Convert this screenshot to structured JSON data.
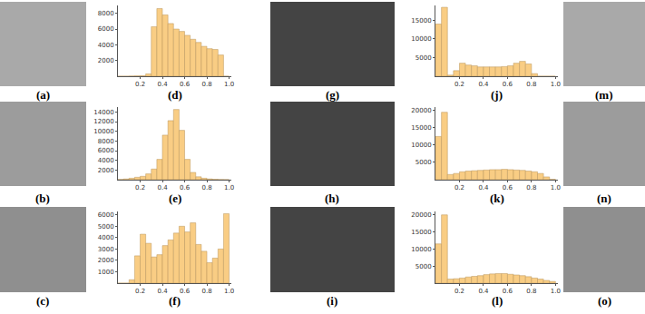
{
  "images": [
    {
      "label": "(a)",
      "color": "#a9a9a9"
    },
    {
      "label": "(b)",
      "color": "#9c9c9c"
    },
    {
      "label": "(c)",
      "color": "#8f8f8f"
    },
    {
      "label": "(g)",
      "color": "#444444"
    },
    {
      "label": "(h)",
      "color": "#444444"
    },
    {
      "label": "(i)",
      "color": "#444444"
    },
    {
      "label": "(m)",
      "color": "#a9a9a9"
    },
    {
      "label": "(n)",
      "color": "#9c9c9c"
    },
    {
      "label": "(o)",
      "color": "#8f8f8f"
    }
  ],
  "chart_data": [
    {
      "type": "histogram",
      "xlabel": "(d)",
      "color": "#f9cd84",
      "bins": [
        0,
        0.05,
        0.1,
        0.15,
        0.2,
        0.25,
        0.3,
        0.35,
        0.4,
        0.45,
        0.5,
        0.55,
        0.6,
        0.65,
        0.7,
        0.75,
        0.8,
        0.85,
        0.9,
        0.95,
        1
      ],
      "counts": [
        0,
        0,
        20,
        40,
        60,
        300,
        6300,
        8600,
        7800,
        6700,
        6000,
        5700,
        5200,
        4700,
        4300,
        3800,
        3500,
        3400,
        2700,
        0
      ],
      "xlim": [
        0,
        1.02
      ],
      "ylim": [
        0,
        9000
      ],
      "xticks": [
        0.2,
        0.4,
        0.6,
        0.8,
        {
          "value": 1,
          "label": "1.0"
        }
      ],
      "yticks": [
        2000,
        4000,
        6000,
        8000
      ]
    },
    {
      "type": "histogram",
      "xlabel": "(e)",
      "color": "#f9cd84",
      "bins": [
        0,
        0.05,
        0.1,
        0.15,
        0.2,
        0.25,
        0.3,
        0.35,
        0.4,
        0.45,
        0.5,
        0.55,
        0.6,
        0.65,
        0.7,
        0.75,
        0.8,
        0.85,
        0.9,
        0.95,
        1
      ],
      "counts": [
        50,
        150,
        300,
        500,
        700,
        1200,
        2200,
        4200,
        9200,
        12200,
        14500,
        10200,
        4200,
        1500,
        600,
        300,
        150,
        80,
        30,
        10
      ],
      "xlim": [
        0,
        1.02
      ],
      "ylim": [
        0,
        15000
      ],
      "xticks": [
        0.2,
        0.4,
        0.6,
        0.8,
        {
          "value": 1,
          "label": "1.0"
        }
      ],
      "yticks": [
        2000,
        4000,
        6000,
        8000,
        10000,
        12000,
        14000
      ]
    },
    {
      "type": "histogram",
      "xlabel": "(f)",
      "color": "#f9cd84",
      "bins": [
        0,
        0.05,
        0.1,
        0.15,
        0.2,
        0.25,
        0.3,
        0.35,
        0.4,
        0.45,
        0.5,
        0.55,
        0.6,
        0.65,
        0.7,
        0.75,
        0.8,
        0.85,
        0.9,
        0.95,
        1
      ],
      "counts": [
        0,
        0,
        300,
        2400,
        4300,
        3500,
        2300,
        2500,
        3300,
        3800,
        4400,
        5000,
        4500,
        5300,
        3400,
        2800,
        1800,
        2200,
        3000,
        6100
      ],
      "xlim": [
        0,
        1.02
      ],
      "ylim": [
        0,
        6300
      ],
      "xticks": [
        0.2,
        0.4,
        0.6,
        0.8,
        {
          "value": 1,
          "label": "1.0"
        }
      ],
      "yticks": [
        1000,
        2000,
        3000,
        4000,
        5000,
        6000
      ]
    },
    {
      "type": "histogram",
      "xlabel": "(j)",
      "color": "#f9cd84",
      "bins": [
        0,
        0.05,
        0.1,
        0.15,
        0.2,
        0.25,
        0.3,
        0.35,
        0.4,
        0.45,
        0.5,
        0.55,
        0.6,
        0.65,
        0.7,
        0.75,
        0.8,
        0.85,
        0.9,
        0.95,
        1
      ],
      "counts": [
        14000,
        18500,
        300,
        1500,
        3500,
        3000,
        2800,
        2500,
        2500,
        2500,
        2500,
        2600,
        2800,
        3500,
        4000,
        3300,
        700,
        0,
        0,
        0
      ],
      "xlim": [
        0,
        1.02
      ],
      "ylim": [
        0,
        19000
      ],
      "xticks": [
        0.2,
        0.4,
        0.6,
        0.8,
        {
          "value": 1,
          "label": "1.0"
        }
      ],
      "yticks": [
        5000,
        10000,
        15000
      ]
    },
    {
      "type": "histogram",
      "xlabel": "(k)",
      "color": "#f9cd84",
      "bins": [
        0,
        0.05,
        0.1,
        0.15,
        0.2,
        0.25,
        0.3,
        0.35,
        0.4,
        0.45,
        0.5,
        0.55,
        0.6,
        0.65,
        0.7,
        0.75,
        0.8,
        0.85,
        0.9,
        0.95,
        1
      ],
      "counts": [
        12500,
        19500,
        1500,
        1800,
        2300,
        2500,
        2600,
        2700,
        2800,
        2900,
        2900,
        3000,
        2900,
        2800,
        2700,
        2500,
        2300,
        1800,
        800,
        100
      ],
      "xlim": [
        0,
        1.02
      ],
      "ylim": [
        0,
        21000
      ],
      "xticks": [
        0.2,
        0.4,
        0.6,
        0.8,
        {
          "value": 1,
          "label": "1.0"
        }
      ],
      "yticks": [
        5000,
        10000,
        15000,
        20000
      ]
    },
    {
      "type": "histogram",
      "xlabel": "(l)",
      "color": "#f9cd84",
      "bins": [
        0,
        0.05,
        0.1,
        0.15,
        0.2,
        0.25,
        0.3,
        0.35,
        0.4,
        0.45,
        0.5,
        0.55,
        0.6,
        0.65,
        0.7,
        0.75,
        0.8,
        0.85,
        0.9,
        0.95,
        1
      ],
      "counts": [
        11500,
        20000,
        1200,
        1300,
        1500,
        1800,
        2000,
        2200,
        2500,
        2700,
        2800,
        2800,
        2600,
        2400,
        2200,
        1900,
        1500,
        1200,
        800,
        500
      ],
      "xlim": [
        0,
        1.02
      ],
      "ylim": [
        0,
        21000
      ],
      "xticks": [
        0.2,
        0.4,
        0.6,
        0.8,
        {
          "value": 1,
          "label": "1.0"
        }
      ],
      "yticks": [
        5000,
        10000,
        15000,
        20000
      ]
    }
  ]
}
